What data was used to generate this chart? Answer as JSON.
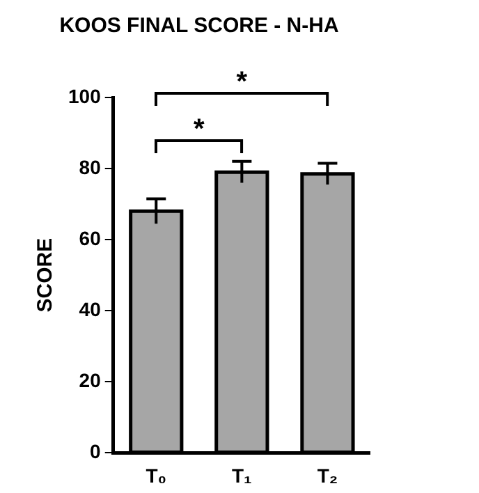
{
  "chart_data": {
    "type": "bar",
    "title": "KOOS FINAL SCORE - N-HA",
    "ylabel": "SCORE",
    "categories": [
      "T₀",
      "T₁",
      "T₂"
    ],
    "values": [
      68,
      79,
      78.5
    ],
    "errors": [
      3.5,
      3,
      3
    ],
    "color": "#a6a6a6",
    "ylim": [
      0,
      100
    ],
    "yticks": [
      0,
      20,
      40,
      60,
      80,
      100
    ],
    "grid": false,
    "legend": false,
    "annotations": [
      "*",
      "*"
    ]
  }
}
